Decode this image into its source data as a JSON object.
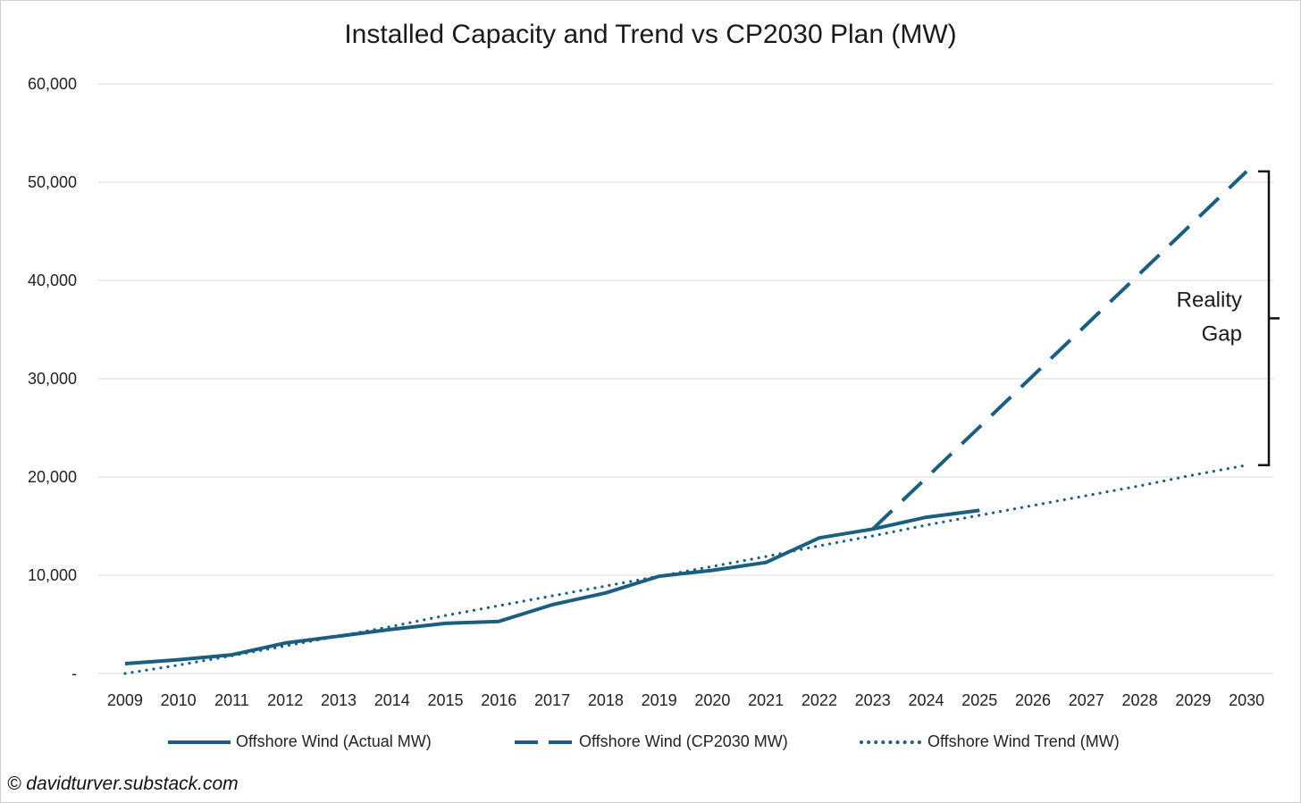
{
  "chart_data": {
    "type": "line",
    "title": "Installed Capacity and Trend vs CP2030 Plan (MW)",
    "categories": [
      "2009",
      "2010",
      "2011",
      "2012",
      "2013",
      "2014",
      "2015",
      "2016",
      "2017",
      "2018",
      "2019",
      "2020",
      "2021",
      "2022",
      "2023",
      "2024",
      "2025",
      "2026",
      "2027",
      "2028",
      "2029",
      "2030"
    ],
    "ylim": [
      0,
      60000
    ],
    "yticks": [
      "-",
      "10,000",
      "20,000",
      "30,000",
      "40,000",
      "50,000",
      "60,000"
    ],
    "grid": "horizontal",
    "legend_position": "bottom",
    "series": [
      {
        "name": "Offshore Wind (Actual MW)",
        "style": "solid",
        "color": "#1b5e7e",
        "values": [
          1000,
          1400,
          1900,
          3100,
          3800,
          4500,
          5100,
          5300,
          7000,
          8200,
          9900,
          10500,
          11300,
          13800,
          14700,
          15900,
          16600,
          null,
          null,
          null,
          null,
          null
        ]
      },
      {
        "name": "Offshore Wind (CP2030 MW)",
        "style": "dashed",
        "color": "#1b5e7e",
        "values": [
          null,
          null,
          null,
          null,
          null,
          null,
          null,
          null,
          null,
          null,
          null,
          null,
          null,
          null,
          14700,
          19900,
          25100,
          30300,
          35500,
          40700,
          45900,
          51100
        ]
      },
      {
        "name": "Offshore Wind Trend (MW)",
        "style": "dotted",
        "color": "#1b5e7e",
        "values": [
          0,
          850,
          1800,
          2800,
          3800,
          4800,
          5900,
          6900,
          7900,
          8900,
          9900,
          10900,
          11900,
          13000,
          14000,
          15100,
          16100,
          17100,
          18100,
          19100,
          20200,
          21200
        ]
      }
    ],
    "annotations": [
      {
        "text_lines": [
          "Reality",
          "Gap"
        ],
        "bracket_from": 21200,
        "bracket_to": 51100
      }
    ]
  },
  "credit": "© davidturver.substack.com"
}
